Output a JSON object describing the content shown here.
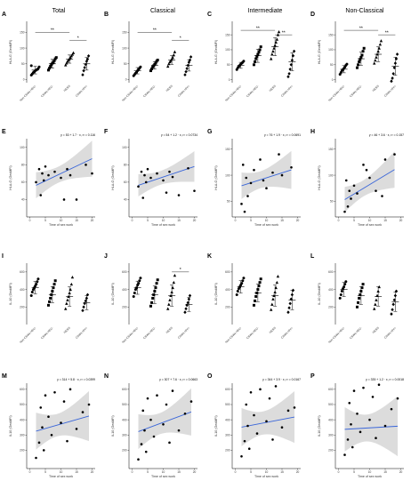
{
  "column_titles": [
    "Total",
    "Classical",
    "Intermediate",
    "Non-Classical"
  ],
  "groups": [
    "Non CSWs HEU-",
    "CSWs HEU-",
    "HESN",
    "CSWs HIV+"
  ],
  "row_labels": {
    "hla_ylabel": "HLA-G (GeoMFI)",
    "il10_ylabel": "IL-10 (GeoMFI)",
    "il10_scatter_ylabel": "IL10 (GeoMFI)",
    "scatter_xlabel": "Time of sex work"
  },
  "colors": {
    "fit_line": "#3a66d9",
    "ci_band": "#d6d6d6",
    "points": "#000000",
    "bracket": "#000000"
  },
  "chart_data": [
    {
      "panel": "A",
      "type": "scatter",
      "kind": "dot",
      "ylabel": "HLA-G (GeoMFI)",
      "ylim": [
        -10,
        185
      ],
      "yticks": [
        0,
        50,
        100,
        150
      ],
      "categories": [
        "Non CSWs HEU-",
        "CSWs HEU-",
        "HESN",
        "CSWs HIV+"
      ],
      "shapes": [
        "circle",
        "square",
        "triangle",
        "diamond"
      ],
      "groups": [
        {
          "mean": 30,
          "sd": 12,
          "points": [
            14,
            18,
            22,
            25,
            28,
            30,
            32,
            35,
            40,
            44
          ]
        },
        {
          "mean": 50,
          "sd": 14,
          "points": [
            30,
            36,
            42,
            48,
            52,
            55,
            60,
            66,
            70
          ]
        },
        {
          "mean": 65,
          "sd": 13,
          "points": [
            46,
            52,
            58,
            62,
            66,
            70,
            75,
            80,
            85
          ]
        },
        {
          "mean": 50,
          "sd": 20,
          "points": [
            15,
            28,
            38,
            48,
            58,
            65,
            75
          ]
        }
      ],
      "brackets": [
        {
          "from": 0,
          "to": 2,
          "label": "**",
          "y": 150
        },
        {
          "from": 2,
          "to": 3,
          "label": "*",
          "y": 125
        }
      ]
    },
    {
      "panel": "B",
      "type": "scatter",
      "kind": "dot",
      "ylabel": "HLA-G (GeoMFI)",
      "ylim": [
        -10,
        185
      ],
      "yticks": [
        0,
        50,
        100,
        150
      ],
      "categories": [
        "Non CSWs HEU-",
        "CSWs HEU-",
        "HESN",
        "CSWs HIV+"
      ],
      "shapes": [
        "circle",
        "square",
        "triangle",
        "diamond"
      ],
      "groups": [
        {
          "mean": 28,
          "sd": 10,
          "points": [
            12,
            16,
            20,
            24,
            28,
            32,
            36,
            40
          ]
        },
        {
          "mean": 45,
          "sd": 12,
          "points": [
            28,
            34,
            40,
            44,
            48,
            52,
            58,
            62
          ]
        },
        {
          "mean": 62,
          "sd": 14,
          "points": [
            42,
            50,
            56,
            60,
            65,
            70,
            78,
            88
          ]
        },
        {
          "mean": 45,
          "sd": 18,
          "points": [
            15,
            25,
            35,
            45,
            55,
            62,
            72
          ]
        }
      ],
      "brackets": [
        {
          "from": 0,
          "to": 2,
          "label": "**",
          "y": 150
        },
        {
          "from": 2,
          "to": 3,
          "label": "*",
          "y": 125
        }
      ]
    },
    {
      "panel": "C",
      "type": "scatter",
      "kind": "dot",
      "ylabel": "HLA-G (GeoMFI)",
      "ylim": [
        -10,
        195
      ],
      "yticks": [
        0,
        50,
        100,
        150
      ],
      "categories": [
        "Non CSWs HEU-",
        "CSWs HEU-",
        "HESN",
        "CSWs HIV+"
      ],
      "shapes": [
        "circle",
        "square",
        "triangle",
        "diamond"
      ],
      "groups": [
        {
          "mean": 48,
          "sd": 10,
          "points": [
            34,
            40,
            44,
            48,
            52,
            55,
            58,
            62
          ]
        },
        {
          "mean": 80,
          "sd": 22,
          "points": [
            50,
            60,
            70,
            78,
            85,
            92,
            100,
            110
          ]
        },
        {
          "mean": 110,
          "sd": 30,
          "points": [
            70,
            85,
            95,
            105,
            115,
            125,
            135,
            150,
            160
          ]
        },
        {
          "mean": 60,
          "sd": 30,
          "points": [
            10,
            20,
            35,
            50,
            65,
            80,
            95
          ]
        }
      ],
      "brackets": [
        {
          "from": 0,
          "to": 2,
          "label": "**",
          "y": 165
        },
        {
          "from": 2,
          "to": 3,
          "label": "**",
          "y": 150
        }
      ]
    },
    {
      "panel": "D",
      "type": "scatter",
      "kind": "dot",
      "ylabel": "HLA-G (GeoMFI)",
      "ylim": [
        -10,
        195
      ],
      "yticks": [
        0,
        50,
        100,
        150
      ],
      "categories": [
        "Non CSWs HEU-",
        "CSWs HEU-",
        "HESN",
        "CSWs HIV+"
      ],
      "shapes": [
        "circle",
        "square",
        "triangle",
        "diamond"
      ],
      "groups": [
        {
          "mean": 35,
          "sd": 12,
          "points": [
            18,
            24,
            30,
            34,
            38,
            42,
            48,
            52
          ]
        },
        {
          "mean": 70,
          "sd": 22,
          "points": [
            40,
            50,
            60,
            68,
            75,
            82,
            95,
            105
          ]
        },
        {
          "mean": 85,
          "sd": 25,
          "points": [
            55,
            65,
            75,
            85,
            95,
            105,
            118,
            130
          ]
        },
        {
          "mean": 45,
          "sd": 30,
          "points": [
            -5,
            5,
            20,
            40,
            55,
            70,
            85
          ]
        }
      ],
      "brackets": [
        {
          "from": 0,
          "to": 2,
          "label": "**",
          "y": 165
        },
        {
          "from": 2,
          "to": 3,
          "label": "**",
          "y": 150
        }
      ]
    },
    {
      "panel": "E",
      "type": "scatter",
      "kind": "reg",
      "equation": "y = 53 + 1.7 · x,  r² = 0.116",
      "xlabel": "Time of sex work",
      "ylabel": "HLA-G (GeoMFI)",
      "xlim": [
        -1,
        21
      ],
      "xticks": [
        0,
        5,
        10,
        15,
        20
      ],
      "ylim": [
        20,
        110
      ],
      "yticks": [
        40,
        60,
        80,
        100
      ],
      "intercept": 53,
      "slope": 1.7,
      "x": [
        2,
        3,
        3.5,
        4,
        4.5,
        5,
        6,
        8,
        10,
        11,
        12,
        13,
        15,
        18,
        20
      ],
      "y": [
        60,
        75,
        45,
        70,
        62,
        78,
        68,
        72,
        65,
        40,
        75,
        68,
        40,
        80,
        70
      ]
    },
    {
      "panel": "F",
      "type": "scatter",
      "kind": "reg",
      "equation": "y = 54 + 1.2 · x,  r² = 0.0734",
      "xlabel": "Time of sex work",
      "ylabel": "HLA-G (GeoMFI)",
      "xlim": [
        -1,
        21
      ],
      "xticks": [
        0,
        5,
        10,
        15,
        20
      ],
      "ylim": [
        20,
        110
      ],
      "yticks": [
        40,
        60,
        80,
        100
      ],
      "intercept": 54,
      "slope": 1.2,
      "x": [
        2,
        3,
        3.5,
        4,
        4.5,
        5,
        6,
        8,
        10,
        11,
        12,
        13,
        15,
        18,
        20
      ],
      "y": [
        55,
        72,
        42,
        68,
        60,
        75,
        65,
        70,
        62,
        48,
        72,
        66,
        45,
        76,
        50
      ]
    },
    {
      "panel": "G",
      "type": "scatter",
      "kind": "reg",
      "equation": "y = 76 + 1.9 · x,  r² = 0.0691",
      "xlabel": "Time of sex work",
      "ylabel": "HLA-G (GeoMFI)",
      "xlim": [
        -1,
        21
      ],
      "xticks": [
        0,
        5,
        10,
        15,
        20
      ],
      "ylim": [
        20,
        170
      ],
      "yticks": [
        50,
        100,
        150
      ],
      "intercept": 76,
      "slope": 1.9,
      "x": [
        2,
        2.5,
        3,
        3.5,
        4,
        5,
        6,
        8,
        9,
        10,
        12,
        14,
        15,
        18
      ],
      "y": [
        45,
        120,
        30,
        95,
        60,
        85,
        110,
        130,
        90,
        75,
        105,
        140,
        100,
        115
      ]
    },
    {
      "panel": "H",
      "type": "scatter",
      "kind": "reg",
      "equation": "y = 46 + 3.6 · x,  r² = 0.157",
      "xlabel": "Time of sex work",
      "ylabel": "HLA-G (GeoMFI)",
      "xlim": [
        -1,
        21
      ],
      "xticks": [
        0,
        5,
        10,
        15,
        20
      ],
      "ylim": [
        20,
        170
      ],
      "yticks": [
        50,
        100,
        150
      ],
      "intercept": 46,
      "slope": 3.6,
      "x": [
        2,
        2.5,
        3,
        3.5,
        4,
        5,
        6,
        8,
        9,
        10,
        12,
        14,
        15,
        18
      ],
      "y": [
        30,
        90,
        40,
        70,
        55,
        80,
        65,
        120,
        110,
        95,
        70,
        60,
        130,
        140
      ]
    },
    {
      "panel": "I",
      "type": "scatter",
      "kind": "dot",
      "ylabel": "IL-10 (GeoMFI)",
      "ylim": [
        0,
        700
      ],
      "yticks": [
        200,
        400,
        600
      ],
      "categories": [
        "Non CSWs HEU-",
        "CSWs HEU-",
        "HESN",
        "CSWs HIV+"
      ],
      "shapes": [
        "circle",
        "square",
        "triangle",
        "diamond"
      ],
      "groups": [
        {
          "mean": 420,
          "sd": 70,
          "points": [
            330,
            370,
            400,
            420,
            440,
            460,
            490,
            520
          ]
        },
        {
          "mean": 340,
          "sd": 90,
          "points": [
            220,
            260,
            300,
            340,
            380,
            420,
            460,
            500
          ]
        },
        {
          "mean": 320,
          "sd": 110,
          "points": [
            180,
            240,
            280,
            320,
            360,
            400,
            460,
            540
          ]
        },
        {
          "mean": 250,
          "sd": 80,
          "points": [
            160,
            200,
            240,
            270,
            300,
            340
          ]
        }
      ],
      "brackets": []
    },
    {
      "panel": "J",
      "type": "scatter",
      "kind": "dot",
      "ylabel": "IL-10 (GeoMFI)",
      "ylim": [
        0,
        700
      ],
      "yticks": [
        200,
        400,
        600
      ],
      "categories": [
        "Non CSWs HEU-",
        "CSWs HEU-",
        "HESN",
        "CSWs HIV+"
      ],
      "shapes": [
        "circle",
        "square",
        "triangle",
        "diamond"
      ],
      "groups": [
        {
          "mean": 420,
          "sd": 75,
          "points": [
            320,
            360,
            400,
            420,
            450,
            470,
            500,
            530
          ]
        },
        {
          "mean": 340,
          "sd": 100,
          "points": [
            210,
            250,
            300,
            340,
            380,
            420,
            470,
            510
          ]
        },
        {
          "mean": 330,
          "sd": 120,
          "points": [
            180,
            230,
            280,
            330,
            370,
            420,
            480,
            560
          ]
        },
        {
          "mean": 230,
          "sd": 80,
          "points": [
            140,
            180,
            220,
            250,
            290,
            330
          ]
        }
      ],
      "brackets": [
        {
          "from": 2,
          "to": 3,
          "label": "*",
          "y": 600
        }
      ]
    },
    {
      "panel": "K",
      "type": "scatter",
      "kind": "dot",
      "ylabel": "IL-10 (GeoMFI)",
      "ylim": [
        0,
        700
      ],
      "yticks": [
        200,
        400,
        600
      ],
      "categories": [
        "Non CSWs HEU-",
        "CSWs HEU-",
        "HESN",
        "CSWs HIV+"
      ],
      "shapes": [
        "circle",
        "square",
        "triangle",
        "diamond"
      ],
      "groups": [
        {
          "mean": 430,
          "sd": 70,
          "points": [
            340,
            380,
            410,
            430,
            450,
            470,
            500,
            530
          ]
        },
        {
          "mean": 360,
          "sd": 100,
          "points": [
            220,
            270,
            320,
            360,
            400,
            440,
            480,
            520
          ]
        },
        {
          "mean": 330,
          "sd": 120,
          "points": [
            170,
            230,
            290,
            330,
            370,
            420,
            480,
            550
          ]
        },
        {
          "mean": 280,
          "sd": 110,
          "points": [
            140,
            190,
            240,
            290,
            340,
            390
          ]
        }
      ],
      "brackets": []
    },
    {
      "panel": "L",
      "type": "scatter",
      "kind": "dot",
      "ylabel": "IL-10 (GeoMFI)",
      "ylim": [
        0,
        700
      ],
      "yticks": [
        200,
        400,
        600
      ],
      "categories": [
        "Non CSWs HEU-",
        "CSWs HEU-",
        "HESN",
        "CSWs HIV+"
      ],
      "shapes": [
        "circle",
        "square",
        "triangle",
        "diamond"
      ],
      "groups": [
        {
          "mean": 400,
          "sd": 80,
          "points": [
            300,
            340,
            380,
            410,
            430,
            460,
            490
          ]
        },
        {
          "mean": 330,
          "sd": 100,
          "points": [
            200,
            250,
            300,
            340,
            380,
            420,
            460
          ]
        },
        {
          "mean": 320,
          "sd": 110,
          "points": [
            180,
            230,
            280,
            330,
            380,
            430
          ]
        },
        {
          "mean": 260,
          "sd": 110,
          "points": [
            120,
            170,
            230,
            280,
            330,
            380
          ]
        }
      ],
      "brackets": []
    },
    {
      "panel": "M",
      "type": "scatter",
      "kind": "reg",
      "equation": "y = 314 + 5.8 · x,  r² = 0.0399",
      "xlabel": "Time of sex work",
      "ylabel": "IL10 (GeoMFI)",
      "xlim": [
        -1,
        21
      ],
      "xticks": [
        0,
        5,
        10,
        15,
        20
      ],
      "ylim": [
        80,
        640
      ],
      "yticks": [
        200,
        300,
        400,
        500,
        600
      ],
      "intercept": 314,
      "slope": 5.8,
      "x": [
        2,
        3,
        3.5,
        4,
        4.5,
        5,
        6,
        7,
        8,
        10,
        11,
        12,
        13,
        15,
        17,
        19
      ],
      "y": [
        150,
        250,
        480,
        350,
        200,
        560,
        420,
        300,
        580,
        380,
        520,
        260,
        600,
        340,
        450,
        500
      ]
    },
    {
      "panel": "N",
      "type": "scatter",
      "kind": "reg",
      "equation": "y = 307 + 7.6 · x,  r² = 0.0663",
      "xlabel": "Time of sex work",
      "ylabel": "IL10 (GeoMFI)",
      "xlim": [
        -1,
        21
      ],
      "xticks": [
        0,
        5,
        10,
        15,
        20
      ],
      "ylim": [
        80,
        640
      ],
      "yticks": [
        200,
        300,
        400,
        500,
        600
      ],
      "intercept": 307,
      "slope": 7.6,
      "x": [
        2,
        3,
        3.5,
        4,
        4.5,
        5,
        6,
        7,
        8,
        10,
        11,
        12,
        13,
        15,
        17,
        19
      ],
      "y": [
        140,
        240,
        460,
        330,
        190,
        540,
        400,
        290,
        560,
        370,
        500,
        250,
        590,
        330,
        440,
        520
      ]
    },
    {
      "panel": "O",
      "type": "scatter",
      "kind": "reg",
      "equation": "y = 344 + 3.9 · x,  r² = 0.0167",
      "xlabel": "Time of sex work",
      "ylabel": "IL10 (GeoMFI)",
      "xlim": [
        -1,
        21
      ],
      "xticks": [
        0,
        5,
        10,
        15,
        20
      ],
      "ylim": [
        80,
        640
      ],
      "yticks": [
        200,
        300,
        400,
        500,
        600
      ],
      "intercept": 344,
      "slope": 3.9,
      "x": [
        2,
        3,
        3.5,
        4,
        4.5,
        5,
        6,
        7,
        8,
        10,
        11,
        12,
        13,
        15,
        17,
        19
      ],
      "y": [
        160,
        260,
        500,
        360,
        210,
        580,
        430,
        310,
        600,
        390,
        540,
        270,
        620,
        350,
        460,
        480
      ]
    },
    {
      "panel": "P",
      "type": "scatter",
      "kind": "reg",
      "equation": "y = 335 + 1.2 · x,  r² = 0.0018",
      "xlabel": "Time of sex work",
      "ylabel": "IL10 (GeoMFI)",
      "xlim": [
        -1,
        21
      ],
      "xticks": [
        0,
        5,
        10,
        15,
        20
      ],
      "ylim": [
        80,
        640
      ],
      "yticks": [
        200,
        300,
        400,
        500,
        600
      ],
      "intercept": 335,
      "slope": 1.2,
      "x": [
        2,
        3,
        3.5,
        4,
        4.5,
        5,
        6,
        7,
        8,
        10,
        11,
        12,
        13,
        15,
        17,
        19
      ],
      "y": [
        170,
        270,
        510,
        370,
        220,
        590,
        440,
        320,
        610,
        400,
        550,
        280,
        630,
        360,
        470,
        540
      ]
    }
  ]
}
